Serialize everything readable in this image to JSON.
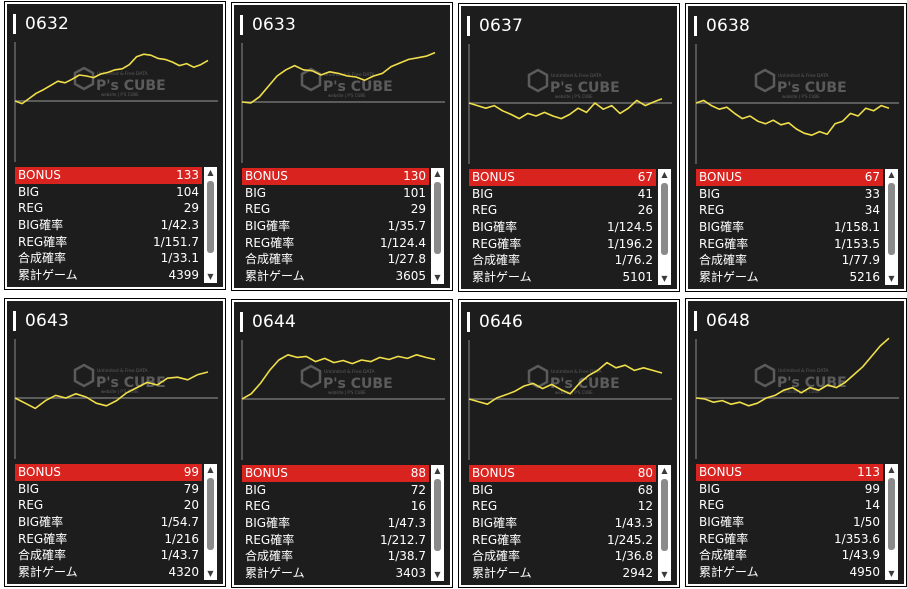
{
  "watermark": {
    "brand": "P's CUBE",
    "tagline": "Unlimited & Free DATA",
    "subline": "website | P'S CUBE"
  },
  "colors": {
    "background": "#1d1d1d",
    "line": "#f0df4a",
    "bonus_row": "#d8231f",
    "baseline": "#707070",
    "axis": "#8a8a8a"
  },
  "labels": {
    "bonus": "BONUS",
    "big": "BIG",
    "reg": "REG",
    "big_rate": "BIG確率",
    "reg_rate": "REG確率",
    "combined_rate": "合成確率",
    "total_games": "累計ゲーム"
  },
  "scrollbar": {
    "up_icon": "▲",
    "down_icon": "▼"
  },
  "machines": [
    {
      "id": "0632",
      "bonus": "133",
      "big": "104",
      "reg": "29",
      "big_rate": "1/42.3",
      "reg_rate": "1/151.7",
      "combined_rate": "1/33.1",
      "total_games": "4399"
    },
    {
      "id": "0633",
      "bonus": "130",
      "big": "101",
      "reg": "29",
      "big_rate": "1/35.7",
      "reg_rate": "1/124.4",
      "combined_rate": "1/27.8",
      "total_games": "3605"
    },
    {
      "id": "0637",
      "bonus": "67",
      "big": "41",
      "reg": "26",
      "big_rate": "1/124.5",
      "reg_rate": "1/196.2",
      "combined_rate": "1/76.2",
      "total_games": "5101"
    },
    {
      "id": "0638",
      "bonus": "67",
      "big": "33",
      "reg": "34",
      "big_rate": "1/158.1",
      "reg_rate": "1/153.5",
      "combined_rate": "1/77.9",
      "total_games": "5216"
    },
    {
      "id": "0643",
      "bonus": "99",
      "big": "79",
      "reg": "20",
      "big_rate": "1/54.7",
      "reg_rate": "1/216",
      "combined_rate": "1/43.7",
      "total_games": "4320"
    },
    {
      "id": "0644",
      "bonus": "88",
      "big": "72",
      "reg": "16",
      "big_rate": "1/47.3",
      "reg_rate": "1/212.7",
      "combined_rate": "1/38.7",
      "total_games": "3403"
    },
    {
      "id": "0646",
      "bonus": "80",
      "big": "68",
      "reg": "12",
      "big_rate": "1/43.3",
      "reg_rate": "1/245.2",
      "combined_rate": "1/36.8",
      "total_games": "2942"
    },
    {
      "id": "0648",
      "bonus": "113",
      "big": "99",
      "reg": "14",
      "big_rate": "1/50",
      "reg_rate": "1/353.6",
      "combined_rate": "1/43.9",
      "total_games": "4950"
    }
  ],
  "chart_data": [
    {
      "type": "line",
      "series": [
        {
          "values": [
            0,
            -0.05,
            0.05,
            0.15,
            0.22,
            0.3,
            0.38,
            0.35,
            0.42,
            0.5,
            0.48,
            0.45,
            0.52,
            0.55,
            0.6,
            0.62,
            0.7,
            0.85,
            0.9,
            0.88,
            0.82,
            0.8,
            0.75,
            0.68,
            0.72,
            0.65,
            0.7,
            0.78
          ]
        }
      ]
    },
    {
      "type": "line",
      "series": [
        {
          "values": [
            0,
            -0.02,
            0.1,
            0.3,
            0.5,
            0.62,
            0.7,
            0.62,
            0.6,
            0.52,
            0.58,
            0.55,
            0.5,
            0.48,
            0.42,
            0.5,
            0.55,
            0.68,
            0.75,
            0.82,
            0.85,
            0.88,
            0.95
          ]
        }
      ]
    },
    {
      "type": "line",
      "series": [
        {
          "values": [
            0,
            -0.05,
            -0.1,
            -0.05,
            -0.15,
            -0.22,
            -0.3,
            -0.2,
            -0.25,
            -0.18,
            -0.25,
            -0.3,
            -0.22,
            -0.1,
            -0.18,
            0,
            -0.12,
            -0.05,
            -0.2,
            -0.1,
            0.05,
            -0.05,
            0.02,
            0.08
          ]
        }
      ]
    },
    {
      "type": "line",
      "series": [
        {
          "values": [
            0,
            0.05,
            -0.05,
            -0.12,
            -0.08,
            -0.2,
            -0.3,
            -0.25,
            -0.35,
            -0.4,
            -0.33,
            -0.42,
            -0.38,
            -0.5,
            -0.58,
            -0.62,
            -0.55,
            -0.6,
            -0.4,
            -0.35,
            -0.2,
            -0.25,
            -0.1,
            -0.15,
            -0.05,
            -0.1
          ]
        }
      ]
    },
    {
      "type": "line",
      "series": [
        {
          "values": [
            0,
            -0.1,
            -0.2,
            -0.05,
            0.05,
            0.0,
            0.08,
            0.02,
            -0.1,
            -0.15,
            -0.05,
            0.1,
            0.2,
            0.3,
            0.25,
            0.38,
            0.4,
            0.35,
            0.45,
            0.5
          ]
        }
      ]
    },
    {
      "type": "line",
      "series": [
        {
          "values": [
            0,
            0.1,
            0.3,
            0.55,
            0.75,
            0.85,
            0.8,
            0.82,
            0.72,
            0.78,
            0.7,
            0.74,
            0.68,
            0.75,
            0.72,
            0.8,
            0.76,
            0.82,
            0.78,
            0.85,
            0.8,
            0.76
          ]
        }
      ]
    },
    {
      "type": "line",
      "series": [
        {
          "values": [
            0,
            -0.05,
            -0.1,
            0.02,
            0.08,
            0.15,
            0.25,
            0.3,
            0.2,
            0.28,
            0.18,
            0.1,
            0.3,
            0.45,
            0.55,
            0.7,
            0.6,
            0.65,
            0.55,
            0.6,
            0.55,
            0.5
          ]
        }
      ]
    },
    {
      "type": "line",
      "series": [
        {
          "values": [
            0,
            -0.02,
            -0.08,
            -0.05,
            -0.12,
            -0.08,
            -0.15,
            -0.1,
            0,
            0.05,
            0.15,
            0.2,
            0.1,
            0.2,
            0.15,
            0.25,
            0.2,
            0.3,
            0.45,
            0.6,
            0.8,
            1.0,
            1.15
          ]
        }
      ]
    }
  ]
}
